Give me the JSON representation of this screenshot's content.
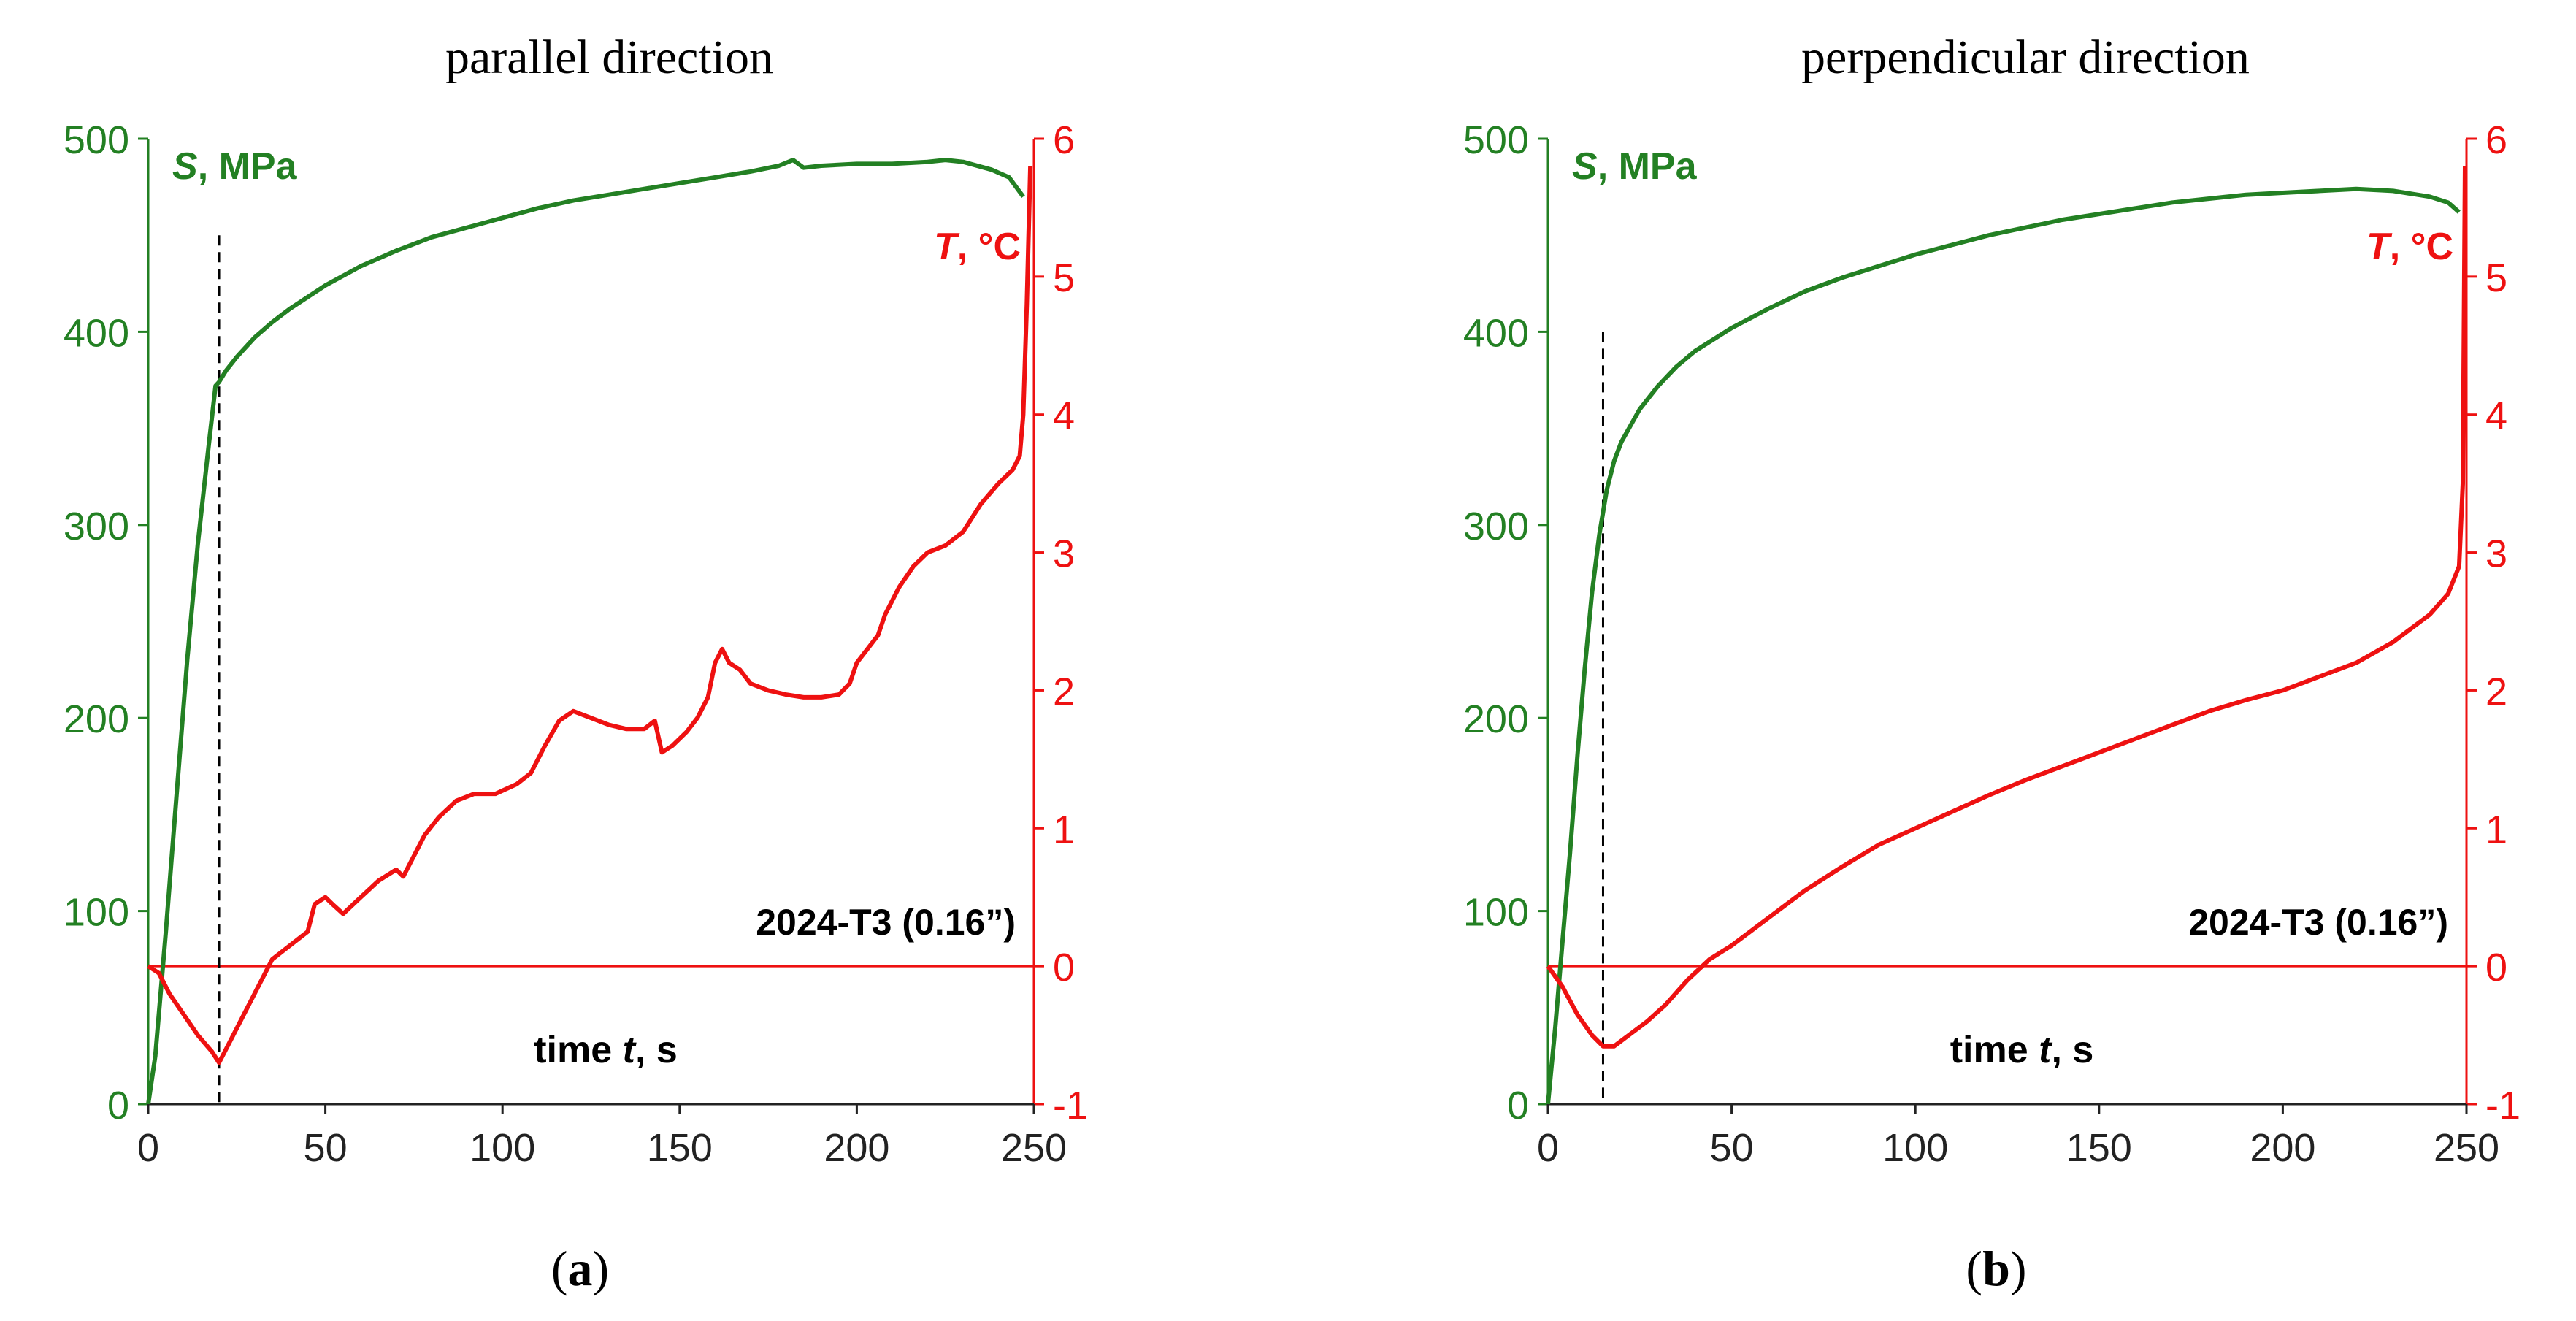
{
  "colors": {
    "stress": "#238023",
    "temperature": "#ee1111",
    "text": "#000000",
    "marker": "#000000"
  },
  "panels": [
    {
      "id": "a",
      "title": "parallel direction",
      "caption_letter": "a",
      "annotation": "2024-T3 (0.16”)",
      "xlabel": {
        "prefix": "time ",
        "var": "t",
        "suffix": ", s"
      },
      "left_label": {
        "var": "S",
        "suffix": ", MPa"
      },
      "right_label": {
        "var": "T",
        "suffix": ", °C"
      },
      "marker_time": 20,
      "marker_top_S": 450,
      "chart_data": {
        "type": "line",
        "x_range": [
          0,
          250
        ],
        "x_ticks": [
          "0",
          "50",
          "100",
          "150",
          "200",
          "250"
        ],
        "y_left_range": [
          0,
          500
        ],
        "y_left_ticks": [
          "0",
          "100",
          "200",
          "300",
          "400",
          "500"
        ],
        "y_right_range": [
          -1,
          6
        ],
        "y_right_ticks": [
          "-1",
          "0",
          "1",
          "2",
          "3",
          "4",
          "5",
          "6"
        ],
        "zero_line_T": 0,
        "series": [
          {
            "name": "S, MPa",
            "axis": "left",
            "points": [
              [
                0,
                0
              ],
              [
                2,
                25
              ],
              [
                5,
                90
              ],
              [
                8,
                160
              ],
              [
                11,
                230
              ],
              [
                14,
                290
              ],
              [
                17,
                340
              ],
              [
                19,
                372
              ],
              [
                20,
                374
              ],
              [
                22,
                380
              ],
              [
                25,
                387
              ],
              [
                30,
                397
              ],
              [
                35,
                405
              ],
              [
                40,
                412
              ],
              [
                50,
                424
              ],
              [
                60,
                434
              ],
              [
                70,
                442
              ],
              [
                80,
                449
              ],
              [
                90,
                454
              ],
              [
                100,
                459
              ],
              [
                110,
                464
              ],
              [
                120,
                468
              ],
              [
                130,
                471
              ],
              [
                140,
                474
              ],
              [
                150,
                477
              ],
              [
                160,
                480
              ],
              [
                170,
                483
              ],
              [
                178,
                486
              ],
              [
                182,
                489
              ],
              [
                185,
                485
              ],
              [
                190,
                486
              ],
              [
                200,
                487
              ],
              [
                210,
                487
              ],
              [
                220,
                488
              ],
              [
                225,
                489
              ],
              [
                230,
                488
              ],
              [
                238,
                484
              ],
              [
                243,
                480
              ],
              [
                247,
                470
              ]
            ]
          },
          {
            "name": "T, °C",
            "axis": "right",
            "points": [
              [
                0,
                0
              ],
              [
                3,
                -0.05
              ],
              [
                6,
                -0.2
              ],
              [
                10,
                -0.35
              ],
              [
                14,
                -0.5
              ],
              [
                18,
                -0.62
              ],
              [
                20,
                -0.7
              ],
              [
                22,
                -0.6
              ],
              [
                25,
                -0.45
              ],
              [
                30,
                -0.2
              ],
              [
                35,
                0.05
              ],
              [
                40,
                0.15
              ],
              [
                45,
                0.25
              ],
              [
                47,
                0.45
              ],
              [
                50,
                0.5
              ],
              [
                52,
                0.45
              ],
              [
                55,
                0.38
              ],
              [
                60,
                0.5
              ],
              [
                65,
                0.62
              ],
              [
                70,
                0.7
              ],
              [
                72,
                0.65
              ],
              [
                75,
                0.8
              ],
              [
                78,
                0.95
              ],
              [
                82,
                1.08
              ],
              [
                87,
                1.2
              ],
              [
                92,
                1.25
              ],
              [
                98,
                1.25
              ],
              [
                104,
                1.32
              ],
              [
                108,
                1.4
              ],
              [
                112,
                1.6
              ],
              [
                116,
                1.78
              ],
              [
                120,
                1.85
              ],
              [
                125,
                1.8
              ],
              [
                130,
                1.75
              ],
              [
                135,
                1.72
              ],
              [
                140,
                1.72
              ],
              [
                143,
                1.78
              ],
              [
                145,
                1.55
              ],
              [
                148,
                1.6
              ],
              [
                152,
                1.7
              ],
              [
                155,
                1.8
              ],
              [
                158,
                1.95
              ],
              [
                160,
                2.2
              ],
              [
                162,
                2.3
              ],
              [
                164,
                2.2
              ],
              [
                167,
                2.15
              ],
              [
                170,
                2.05
              ],
              [
                175,
                2.0
              ],
              [
                180,
                1.97
              ],
              [
                185,
                1.95
              ],
              [
                190,
                1.95
              ],
              [
                195,
                1.97
              ],
              [
                198,
                2.05
              ],
              [
                200,
                2.2
              ],
              [
                203,
                2.3
              ],
              [
                206,
                2.4
              ],
              [
                208,
                2.55
              ],
              [
                212,
                2.75
              ],
              [
                216,
                2.9
              ],
              [
                220,
                3.0
              ],
              [
                225,
                3.05
              ],
              [
                230,
                3.15
              ],
              [
                235,
                3.35
              ],
              [
                240,
                3.5
              ],
              [
                244,
                3.6
              ],
              [
                246,
                3.7
              ],
              [
                247,
                4.0
              ],
              [
                248,
                4.8
              ],
              [
                249,
                5.8
              ]
            ]
          }
        ]
      }
    },
    {
      "id": "b",
      "title": "perpendicular direction",
      "caption_letter": "b",
      "annotation": "2024-T3 (0.16”)",
      "xlabel": {
        "prefix": "time ",
        "var": "t",
        "suffix": ", s"
      },
      "left_label": {
        "var": "S",
        "suffix": ", MPa"
      },
      "right_label": {
        "var": "T",
        "suffix": ", °C"
      },
      "marker_time": 15,
      "marker_top_S": 400,
      "chart_data": {
        "type": "line",
        "x_range": [
          0,
          250
        ],
        "x_ticks": [
          "0",
          "50",
          "100",
          "150",
          "200",
          "250"
        ],
        "y_left_range": [
          0,
          500
        ],
        "y_left_ticks": [
          "0",
          "100",
          "200",
          "300",
          "400",
          "500"
        ],
        "y_right_range": [
          -1,
          6
        ],
        "y_right_ticks": [
          "-1",
          "0",
          "1",
          "2",
          "3",
          "4",
          "5",
          "6"
        ],
        "zero_line_T": 0,
        "series": [
          {
            "name": "S, MPa",
            "axis": "left",
            "points": [
              [
                0,
                0
              ],
              [
                2,
                40
              ],
              [
                4,
                85
              ],
              [
                6,
                130
              ],
              [
                8,
                180
              ],
              [
                10,
                225
              ],
              [
                12,
                265
              ],
              [
                14,
                295
              ],
              [
                16,
                318
              ],
              [
                18,
                333
              ],
              [
                20,
                343
              ],
              [
                25,
                360
              ],
              [
                30,
                372
              ],
              [
                35,
                382
              ],
              [
                40,
                390
              ],
              [
                50,
                402
              ],
              [
                60,
                412
              ],
              [
                70,
                421
              ],
              [
                80,
                428
              ],
              [
                90,
                434
              ],
              [
                100,
                440
              ],
              [
                110,
                445
              ],
              [
                120,
                450
              ],
              [
                130,
                454
              ],
              [
                140,
                458
              ],
              [
                150,
                461
              ],
              [
                160,
                464
              ],
              [
                170,
                467
              ],
              [
                180,
                469
              ],
              [
                190,
                471
              ],
              [
                200,
                472
              ],
              [
                210,
                473
              ],
              [
                220,
                474
              ],
              [
                230,
                473
              ],
              [
                240,
                470
              ],
              [
                245,
                467
              ],
              [
                248,
                462
              ]
            ]
          },
          {
            "name": "T, °C",
            "axis": "right",
            "points": [
              [
                0,
                0
              ],
              [
                4,
                -0.15
              ],
              [
                8,
                -0.35
              ],
              [
                12,
                -0.5
              ],
              [
                15,
                -0.58
              ],
              [
                18,
                -0.58
              ],
              [
                22,
                -0.5
              ],
              [
                27,
                -0.4
              ],
              [
                32,
                -0.28
              ],
              [
                38,
                -0.1
              ],
              [
                44,
                0.05
              ],
              [
                50,
                0.15
              ],
              [
                60,
                0.35
              ],
              [
                70,
                0.55
              ],
              [
                80,
                0.72
              ],
              [
                90,
                0.88
              ],
              [
                100,
                1.0
              ],
              [
                110,
                1.12
              ],
              [
                120,
                1.24
              ],
              [
                130,
                1.35
              ],
              [
                140,
                1.45
              ],
              [
                150,
                1.55
              ],
              [
                160,
                1.65
              ],
              [
                170,
                1.75
              ],
              [
                180,
                1.85
              ],
              [
                190,
                1.93
              ],
              [
                200,
                2.0
              ],
              [
                210,
                2.1
              ],
              [
                220,
                2.2
              ],
              [
                230,
                2.35
              ],
              [
                240,
                2.55
              ],
              [
                245,
                2.7
              ],
              [
                248,
                2.9
              ],
              [
                249,
                3.5
              ],
              [
                249.6,
                5.8
              ]
            ]
          }
        ]
      }
    }
  ]
}
